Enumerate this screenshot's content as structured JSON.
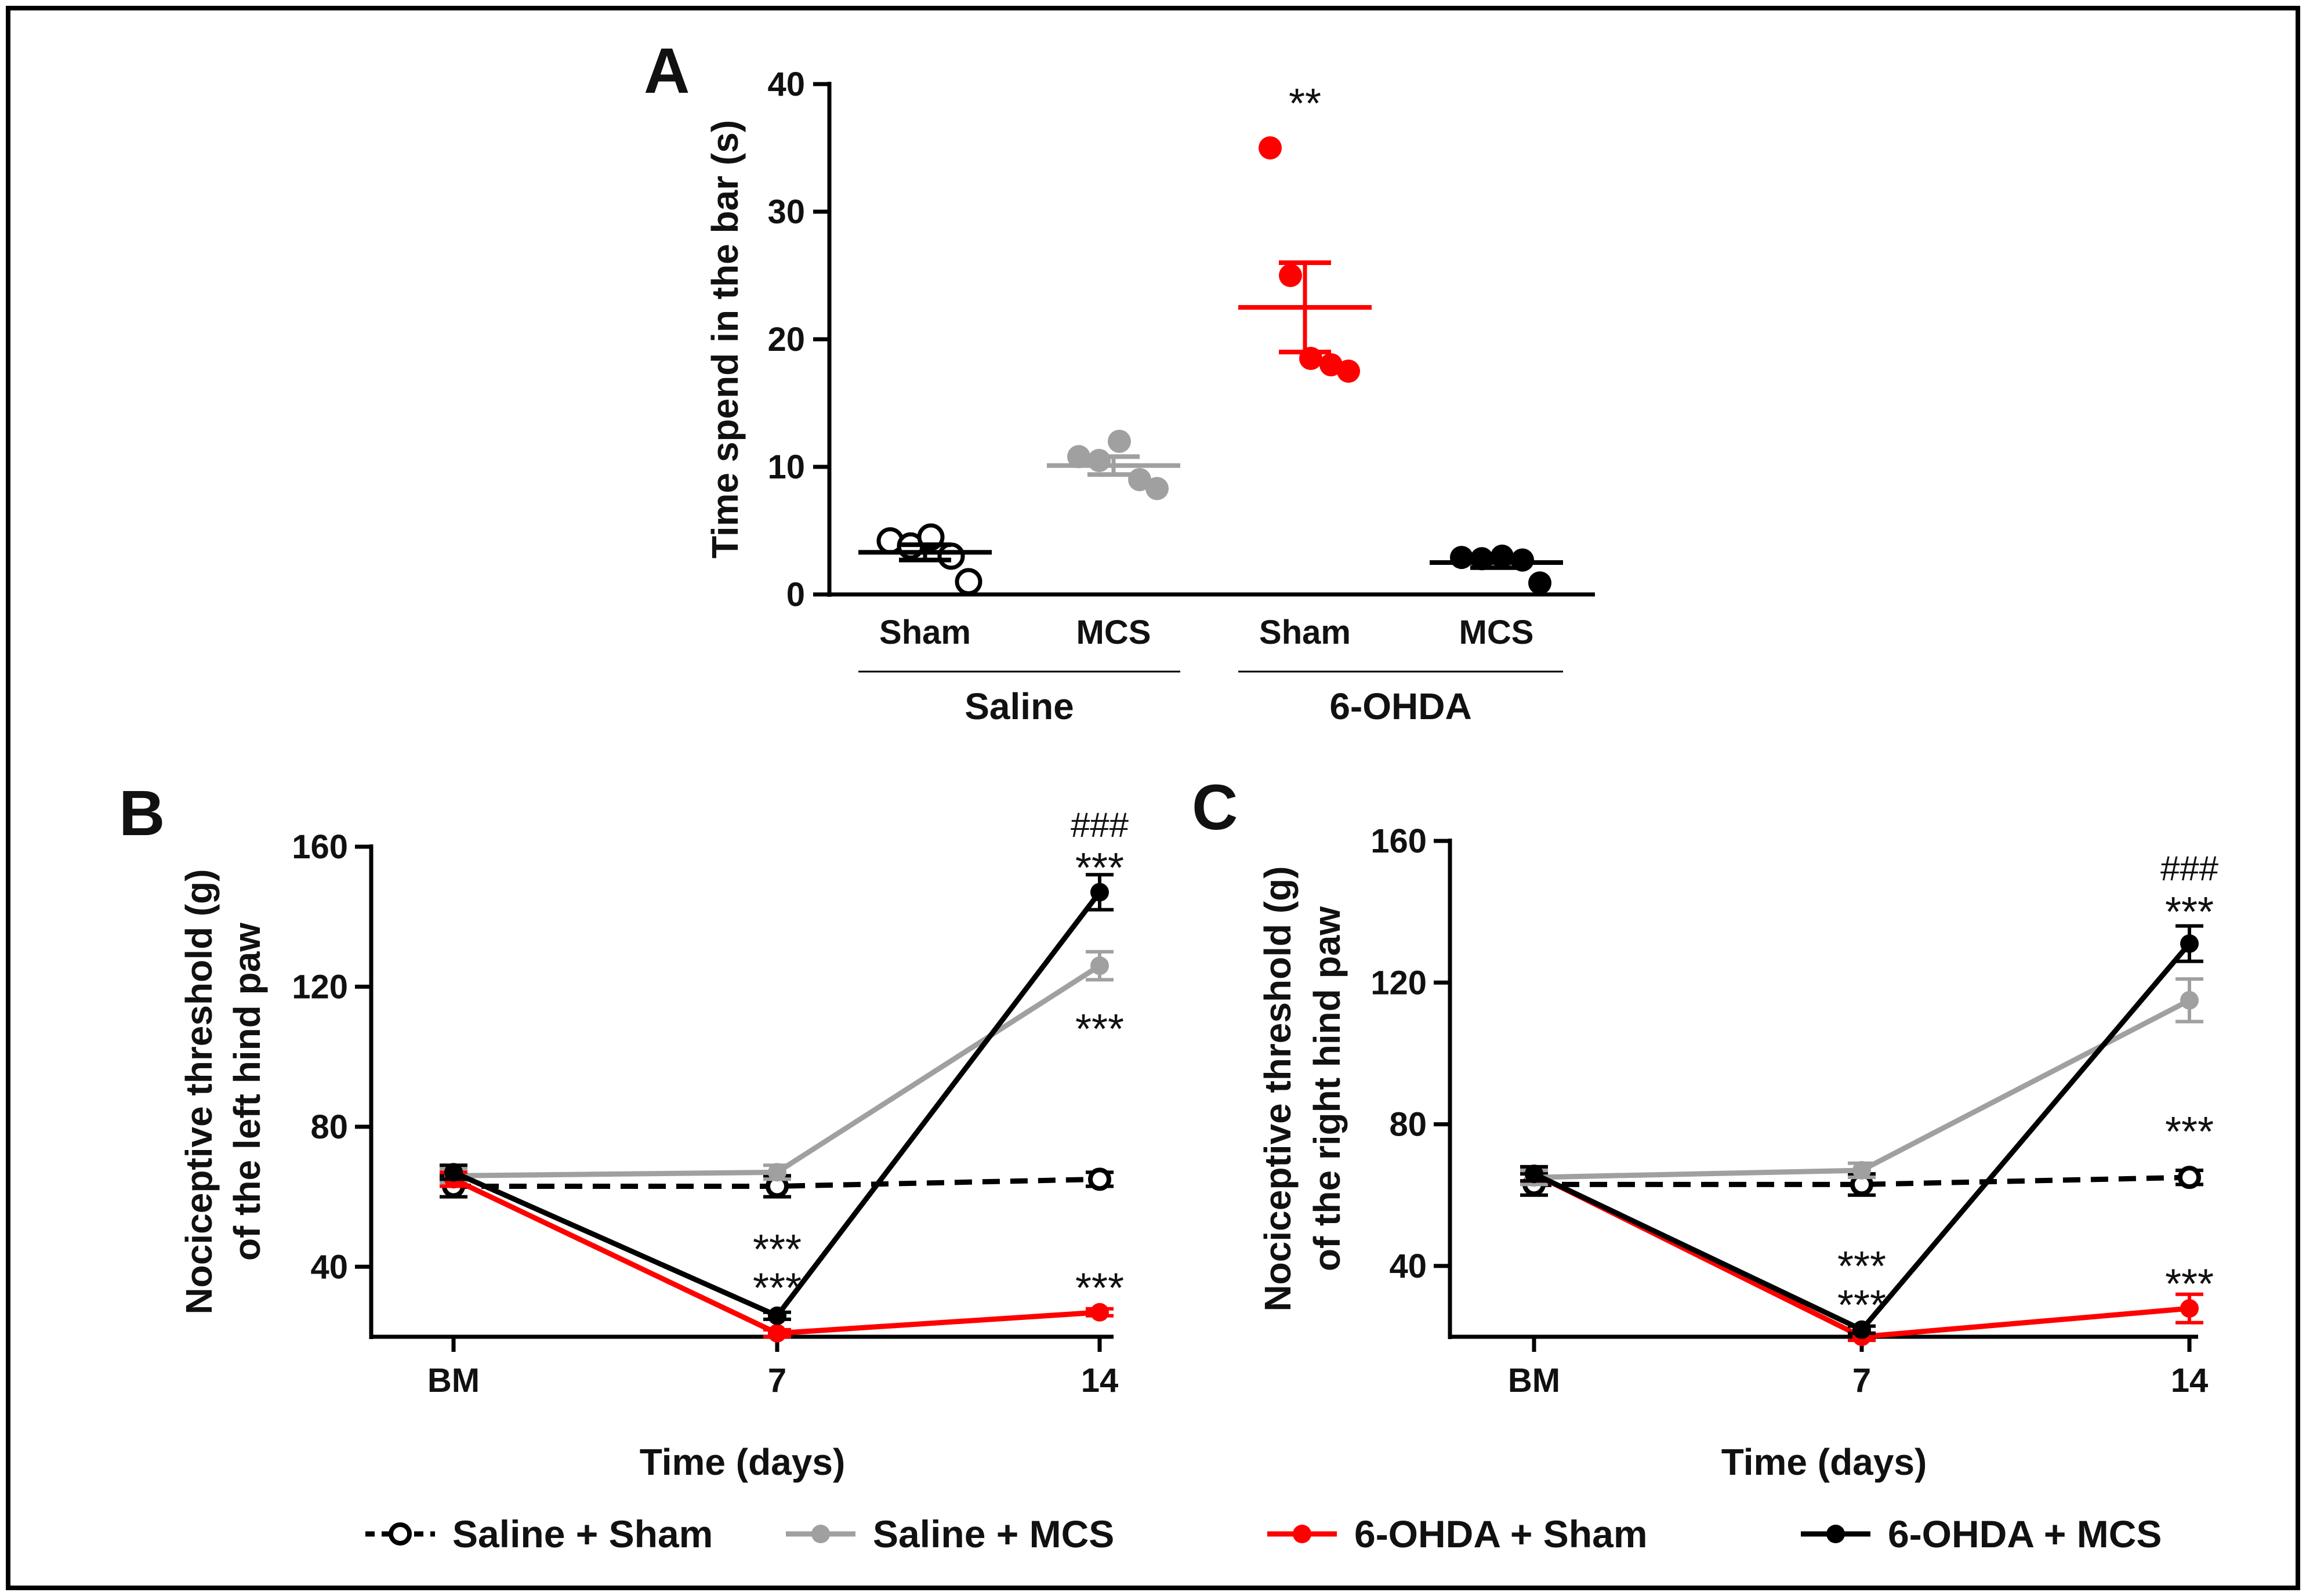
{
  "chart_data": [
    {
      "panel": "A",
      "type": "scatter",
      "ylabel": "Time spend in the bar (s)",
      "ylim": [
        0,
        40
      ],
      "yticks": [
        0,
        10,
        20,
        30,
        40
      ],
      "categories": [
        "Sham",
        "MCS",
        "Sham",
        "MCS"
      ],
      "groups": [
        {
          "label": "Saline",
          "members": [
            0,
            1
          ]
        },
        {
          "label": "6-OHDA",
          "members": [
            2,
            3
          ]
        }
      ],
      "series": [
        {
          "name": "Saline + Sham",
          "color": "#000000",
          "filled": false,
          "points": [
            4.2,
            3.8,
            4.5,
            3.0,
            1.0
          ],
          "mean": 3.3,
          "sem": 0.6
        },
        {
          "name": "Saline + MCS",
          "color": "#a0a0a0",
          "filled": true,
          "points": [
            10.8,
            10.5,
            12.0,
            9.0,
            8.3
          ],
          "mean": 10.1,
          "sem": 0.7
        },
        {
          "name": "6-OHDA + Sham",
          "color": "#ff0000",
          "filled": true,
          "points": [
            35.0,
            25.0,
            18.5,
            18.0,
            17.5
          ],
          "mean": 22.5,
          "sem": 3.5
        },
        {
          "name": "6-OHDA + MCS",
          "color": "#000000",
          "filled": true,
          "points": [
            2.9,
            2.8,
            3.0,
            2.7,
            0.9
          ],
          "mean": 2.5,
          "sem": 0.4
        }
      ],
      "annotations": [
        {
          "category": 2,
          "text": "**",
          "y": 38.5
        }
      ]
    },
    {
      "panel": "B",
      "type": "line",
      "xlabel": "Time (days)",
      "ylabel_line1": "Nociceptive threshold (g)",
      "ylabel_line2": "of the left hind paw",
      "categories": [
        "BM",
        "7",
        "14"
      ],
      "ylim": [
        20,
        160
      ],
      "yticks": [
        40,
        80,
        120,
        160
      ],
      "series": [
        {
          "name": "Saline + Sham",
          "color": "#000000",
          "style": "dashed",
          "marker": "open",
          "values": [
            63,
            63,
            65
          ],
          "err": [
            3,
            3,
            2
          ]
        },
        {
          "name": "Saline + MCS",
          "color": "#a0a0a0",
          "style": "solid",
          "marker": "filled",
          "values": [
            66,
            67,
            126
          ],
          "err": [
            2,
            2,
            4
          ]
        },
        {
          "name": "6-OHDA + Sham",
          "color": "#ff0000",
          "style": "solid",
          "marker": "filled",
          "values": [
            65,
            21,
            27
          ],
          "err": [
            2,
            1,
            1
          ]
        },
        {
          "name": "6-OHDA + MCS",
          "color": "#000000",
          "style": "solid",
          "marker": "filled",
          "values": [
            67,
            26,
            147
          ],
          "err": [
            2,
            1,
            5
          ]
        }
      ],
      "annotations": [
        {
          "x": 2,
          "y": 167,
          "text": "###",
          "kind": "hash"
        },
        {
          "x": 2,
          "y": 154,
          "text": "***",
          "kind": "stars"
        },
        {
          "x": 2,
          "y": 108,
          "text": "***",
          "kind": "stars"
        },
        {
          "x": 1,
          "y": 45,
          "text": "***",
          "kind": "stars"
        },
        {
          "x": 1,
          "y": 34,
          "text": "***",
          "kind": "stars"
        },
        {
          "x": 2,
          "y": 34,
          "text": "***",
          "kind": "stars"
        }
      ]
    },
    {
      "panel": "C",
      "type": "line",
      "xlabel": "Time (days)",
      "ylabel_line1": "Nociceptive threshold (g)",
      "ylabel_line2": "of the right hind paw",
      "categories": [
        "BM",
        "7",
        "14"
      ],
      "ylim": [
        20,
        160
      ],
      "yticks": [
        40,
        80,
        120,
        160
      ],
      "series": [
        {
          "name": "Saline + Sham",
          "color": "#000000",
          "style": "dashed",
          "marker": "open",
          "values": [
            63,
            63,
            65
          ],
          "err": [
            3,
            3,
            2
          ]
        },
        {
          "name": "Saline + MCS",
          "color": "#a0a0a0",
          "style": "solid",
          "marker": "filled",
          "values": [
            65,
            67,
            115
          ],
          "err": [
            2,
            2,
            6
          ]
        },
        {
          "name": "6-OHDA + Sham",
          "color": "#ff0000",
          "style": "solid",
          "marker": "filled",
          "values": [
            66,
            20,
            28
          ],
          "err": [
            2,
            1,
            4
          ]
        },
        {
          "name": "6-OHDA + MCS",
          "color": "#000000",
          "style": "solid",
          "marker": "filled",
          "values": [
            66,
            22,
            131
          ],
          "err": [
            2,
            1,
            5
          ]
        }
      ],
      "annotations": [
        {
          "x": 2,
          "y": 153,
          "text": "###",
          "kind": "hash"
        },
        {
          "x": 2,
          "y": 140,
          "text": "***",
          "kind": "stars"
        },
        {
          "x": 2,
          "y": 78,
          "text": "***",
          "kind": "stars"
        },
        {
          "x": 1,
          "y": 40,
          "text": "***",
          "kind": "stars"
        },
        {
          "x": 1,
          "y": 29,
          "text": "***",
          "kind": "stars"
        },
        {
          "x": 2,
          "y": 35,
          "text": "***",
          "kind": "stars"
        }
      ]
    }
  ],
  "legend": [
    {
      "label": "Saline + Sham",
      "color": "#000000",
      "style": "dashed",
      "marker": "open"
    },
    {
      "label": "Saline + MCS",
      "color": "#a0a0a0",
      "style": "solid",
      "marker": "filled"
    },
    {
      "label": "6-OHDA + Sham",
      "color": "#ff0000",
      "style": "solid",
      "marker": "filled"
    },
    {
      "label": "6-OHDA + MCS",
      "color": "#000000",
      "style": "solid",
      "marker": "filled"
    }
  ]
}
